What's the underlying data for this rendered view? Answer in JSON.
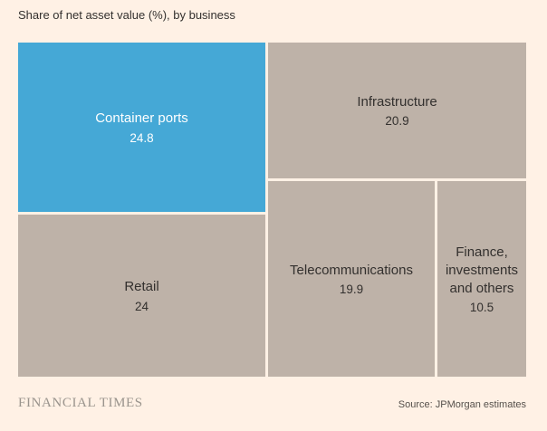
{
  "title": "Share of net asset value (%), by business",
  "footer": {
    "brand": "FINANCIAL TIMES",
    "source": "Source: JPMorgan estimates"
  },
  "colors": {
    "background": "#FFF1E5",
    "highlight_blue": "#45A8D6",
    "tile_beige": "#BEB2A8",
    "text_dark": "#33302E",
    "text_light": "#FFFFFF",
    "brand_gray": "#9A948D"
  },
  "chart_data": {
    "type": "treemap",
    "title": "Share of net asset value (%), by business",
    "unit": "% of net asset value",
    "legend": "none",
    "items": [
      {
        "label": "Container ports",
        "value": 24.8,
        "color": "#45A8D6"
      },
      {
        "label": "Retail",
        "value": 24,
        "color": "#BEB2A8"
      },
      {
        "label": "Infrastructure",
        "value": 20.9,
        "color": "#BEB2A8"
      },
      {
        "label": "Telecommunications",
        "value": 19.9,
        "color": "#BEB2A8"
      },
      {
        "label": "Finance, investments and others",
        "value": 10.5,
        "color": "#BEB2A8"
      }
    ],
    "source": "Source: JPMorgan estimates"
  }
}
